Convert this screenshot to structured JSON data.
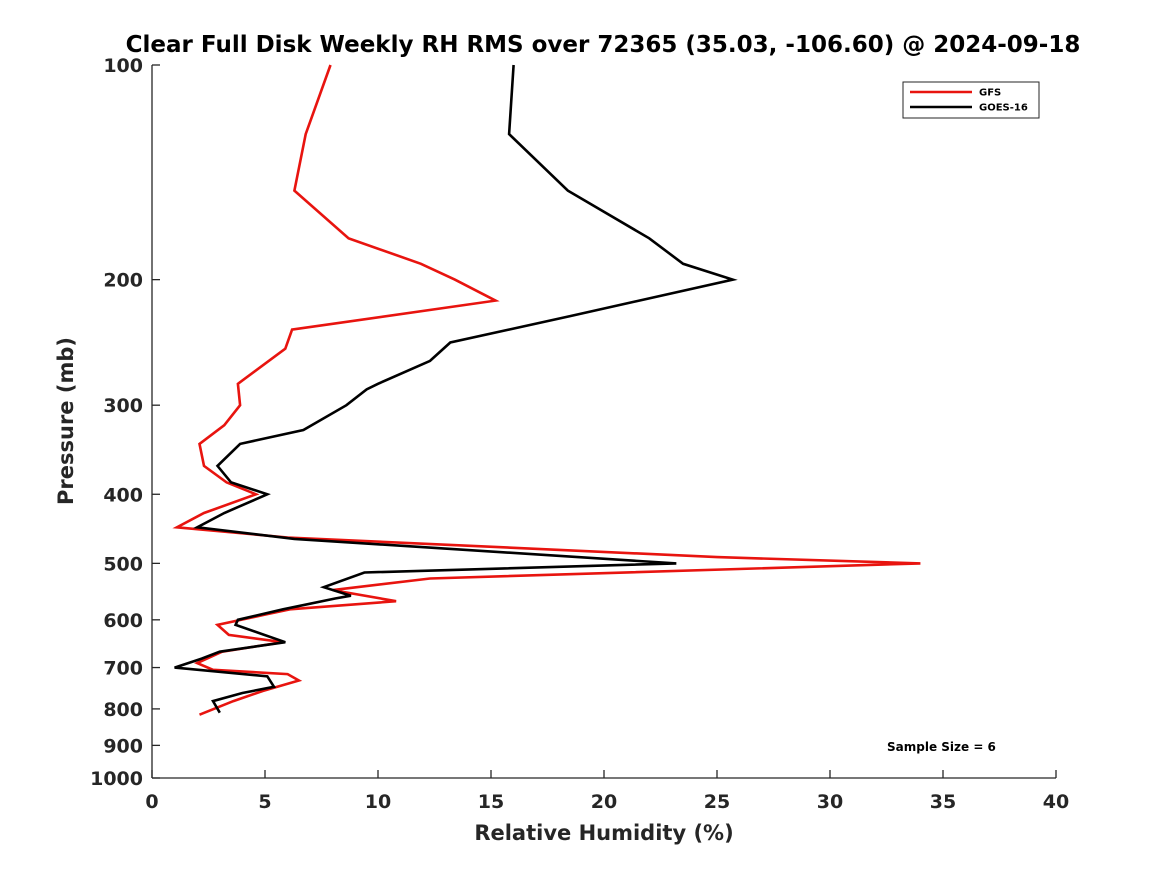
{
  "chart_data": {
    "type": "line",
    "title": "Clear Full Disk Weekly RH RMS over 72365 (35.03, -106.60) @ 2024-09-18",
    "xlabel": "Relative Humidity (%)",
    "ylabel": "Pressure (mb)",
    "xlim": [
      0,
      40
    ],
    "ylim": [
      100,
      1000
    ],
    "y_scale": "log",
    "y_reversed": true,
    "grid": false,
    "x_ticks": [
      0,
      5,
      10,
      15,
      20,
      25,
      30,
      35,
      40
    ],
    "y_ticks": [
      100,
      200,
      300,
      400,
      500,
      600,
      700,
      800,
      900,
      1000
    ],
    "legend_position": "top-right",
    "annotation": "Sample Size = 6",
    "series": [
      {
        "name": "GFS",
        "color": "#e8140f",
        "points": [
          [
            7.9,
            100
          ],
          [
            6.8,
            125
          ],
          [
            6.3,
            150
          ],
          [
            8.7,
            175
          ],
          [
            11.9,
            190
          ],
          [
            13.4,
            200
          ],
          [
            15.2,
            214
          ],
          [
            6.2,
            235
          ],
          [
            5.9,
            250
          ],
          [
            3.8,
            280
          ],
          [
            3.9,
            300
          ],
          [
            3.2,
            320
          ],
          [
            2.1,
            340
          ],
          [
            2.3,
            365
          ],
          [
            3.3,
            385
          ],
          [
            4.6,
            400
          ],
          [
            2.3,
            425
          ],
          [
            1.1,
            445
          ],
          [
            6.0,
            460
          ],
          [
            25.0,
            490
          ],
          [
            34.0,
            500
          ],
          [
            12.3,
            525
          ],
          [
            8.0,
            545
          ],
          [
            10.8,
            565
          ],
          [
            6.1,
            580
          ],
          [
            5.0,
            590
          ],
          [
            2.9,
            610
          ],
          [
            3.4,
            630
          ],
          [
            5.8,
            645
          ],
          [
            3.1,
            665
          ],
          [
            2.0,
            690
          ],
          [
            2.7,
            705
          ],
          [
            6.0,
            715
          ],
          [
            6.5,
            730
          ],
          [
            4.9,
            755
          ],
          [
            3.6,
            780
          ],
          [
            2.1,
            815
          ]
        ]
      },
      {
        "name": "GOES-16",
        "color": "#000000",
        "points": [
          [
            16.0,
            100
          ],
          [
            15.8,
            125
          ],
          [
            18.4,
            150
          ],
          [
            22.0,
            175
          ],
          [
            23.5,
            190
          ],
          [
            25.7,
            200
          ],
          [
            18.5,
            225
          ],
          [
            13.2,
            245
          ],
          [
            12.3,
            260
          ],
          [
            10.0,
            280
          ],
          [
            9.5,
            285
          ],
          [
            8.6,
            300
          ],
          [
            6.7,
            325
          ],
          [
            3.9,
            340
          ],
          [
            2.9,
            365
          ],
          [
            3.5,
            385
          ],
          [
            5.1,
            400
          ],
          [
            3.2,
            425
          ],
          [
            2.0,
            445
          ],
          [
            6.3,
            462
          ],
          [
            23.2,
            500
          ],
          [
            9.4,
            515
          ],
          [
            7.6,
            540
          ],
          [
            8.8,
            555
          ],
          [
            8.1,
            560
          ],
          [
            5.8,
            580
          ],
          [
            3.8,
            600
          ],
          [
            3.7,
            610
          ],
          [
            5.9,
            645
          ],
          [
            3.0,
            665
          ],
          [
            2.2,
            680
          ],
          [
            1.0,
            700
          ],
          [
            5.1,
            720
          ],
          [
            5.4,
            745
          ],
          [
            4.0,
            760
          ],
          [
            2.7,
            780
          ],
          [
            3.0,
            810
          ]
        ]
      }
    ]
  }
}
